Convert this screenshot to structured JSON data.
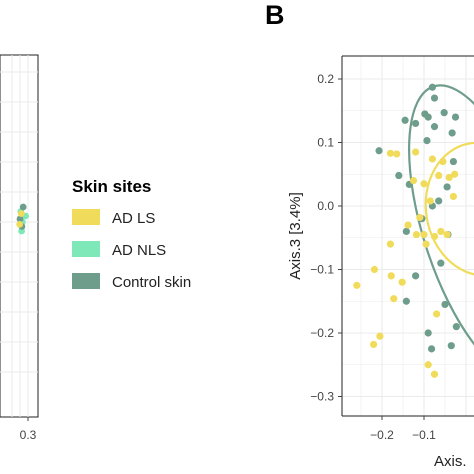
{
  "panel_label": "B",
  "legend": {
    "title": "Skin sites",
    "items": [
      {
        "label": "AD LS",
        "color": "#f0dc5a"
      },
      {
        "label": "AD NLS",
        "color": "#7ee8b8"
      },
      {
        "label": "Control skin",
        "color": "#6f9d8c"
      }
    ]
  },
  "chart_data": [
    {
      "type": "scatter",
      "panel": "A (partially visible)",
      "title": "",
      "xlabel": "",
      "ylabel": "",
      "x_tick_labels": [
        "0.3"
      ],
      "series": [
        {
          "name": "AD NLS",
          "color": "#7ee8b8",
          "points": [
            [
              0.285,
              0.02
            ],
            [
              0.265,
              0.0
            ],
            [
              0.255,
              0.035
            ],
            [
              0.26,
              -0.03
            ]
          ]
        },
        {
          "name": "Control skin",
          "color": "#6f9d8c",
          "points": [
            [
              0.27,
              0.05
            ],
            [
              0.25,
              0.01
            ],
            [
              0.262,
              -0.015
            ]
          ]
        },
        {
          "name": "AD LS",
          "color": "#f0dc5a",
          "points": [
            [
              0.258,
              0.028
            ],
            [
              0.248,
              -0.008
            ]
          ]
        }
      ]
    },
    {
      "type": "scatter",
      "panel": "B",
      "title": "",
      "xlabel": "Axis.",
      "ylabel": "Axis.3   [3.4%]",
      "xlim": [
        -0.27,
        0.02
      ],
      "ylim": [
        -0.32,
        0.235
      ],
      "x_ticks": [
        -0.2,
        -0.1
      ],
      "x_tick_labels": [
        "−0.2",
        "−0.1"
      ],
      "y_ticks": [
        0.2,
        0.1,
        0.0,
        -0.1,
        -0.2,
        -0.3
      ],
      "y_tick_labels": [
        "0.2",
        "0.1",
        "0.0",
        "−0.1",
        "−0.2",
        "−0.3"
      ],
      "grid": true,
      "series": [
        {
          "name": "Control skin",
          "color": "#6f9d8c",
          "points": [
            [
              -0.08,
              0.187
            ],
            [
              -0.075,
              0.17
            ],
            [
              -0.098,
              0.145
            ],
            [
              -0.09,
              0.14
            ],
            [
              -0.075,
              0.125
            ],
            [
              -0.12,
              0.13
            ],
            [
              -0.145,
              0.135
            ],
            [
              -0.093,
              0.103
            ],
            [
              -0.207,
              0.087
            ],
            [
              -0.16,
              0.048
            ],
            [
              -0.135,
              0.034
            ],
            [
              -0.045,
              0.03
            ],
            [
              -0.065,
              0.008
            ],
            [
              -0.08,
              0.0
            ],
            [
              -0.033,
              0.115
            ],
            [
              -0.052,
              0.147
            ],
            [
              -0.03,
              0.07
            ],
            [
              -0.105,
              -0.02
            ],
            [
              -0.142,
              -0.04
            ],
            [
              -0.043,
              -0.045
            ],
            [
              -0.12,
              -0.11
            ],
            [
              -0.142,
              -0.15
            ],
            [
              -0.05,
              -0.155
            ],
            [
              -0.035,
              -0.22
            ],
            [
              -0.023,
              -0.19
            ],
            [
              -0.09,
              -0.2
            ],
            [
              -0.082,
              -0.225
            ],
            [
              -0.06,
              -0.09
            ],
            [
              -0.025,
              0.14
            ]
          ]
        },
        {
          "name": "AD LS",
          "color": "#f0dc5a",
          "points": [
            [
              -0.18,
              0.083
            ],
            [
              -0.165,
              0.082
            ],
            [
              -0.12,
              0.085
            ],
            [
              -0.08,
              0.074
            ],
            [
              -0.055,
              0.07
            ],
            [
              -0.125,
              0.04
            ],
            [
              -0.1,
              0.035
            ],
            [
              -0.065,
              0.048
            ],
            [
              -0.04,
              0.045
            ],
            [
              -0.085,
              0.008
            ],
            [
              -0.11,
              -0.018
            ],
            [
              -0.1,
              -0.045
            ],
            [
              -0.095,
              -0.06
            ],
            [
              -0.075,
              -0.048
            ],
            [
              -0.06,
              -0.04
            ],
            [
              -0.118,
              -0.045
            ],
            [
              -0.138,
              -0.03
            ],
            [
              -0.18,
              -0.06
            ],
            [
              -0.218,
              -0.1
            ],
            [
              -0.178,
              -0.11
            ],
            [
              -0.152,
              -0.12
            ],
            [
              -0.26,
              -0.125
            ],
            [
              -0.205,
              -0.205
            ],
            [
              -0.22,
              -0.218
            ],
            [
              -0.172,
              -0.146
            ],
            [
              -0.045,
              -0.045
            ],
            [
              -0.03,
              0.015
            ],
            [
              -0.07,
              -0.17
            ],
            [
              -0.027,
              0.05
            ],
            [
              -0.09,
              -0.25
            ],
            [
              -0.075,
              -0.265
            ]
          ]
        }
      ],
      "ellipses": [
        {
          "group": "Control skin",
          "color": "#6f9d8c",
          "center": [
            0.035,
            -0.04
          ],
          "radius_x": 0.135,
          "radius_y": 0.24,
          "rotation_deg": -18
        },
        {
          "group": "AD LS",
          "color": "#f0dc5a",
          "center": [
            0.035,
            -0.005
          ],
          "radius_x": 0.13,
          "radius_y": 0.105,
          "rotation_deg": -10
        }
      ]
    }
  ]
}
